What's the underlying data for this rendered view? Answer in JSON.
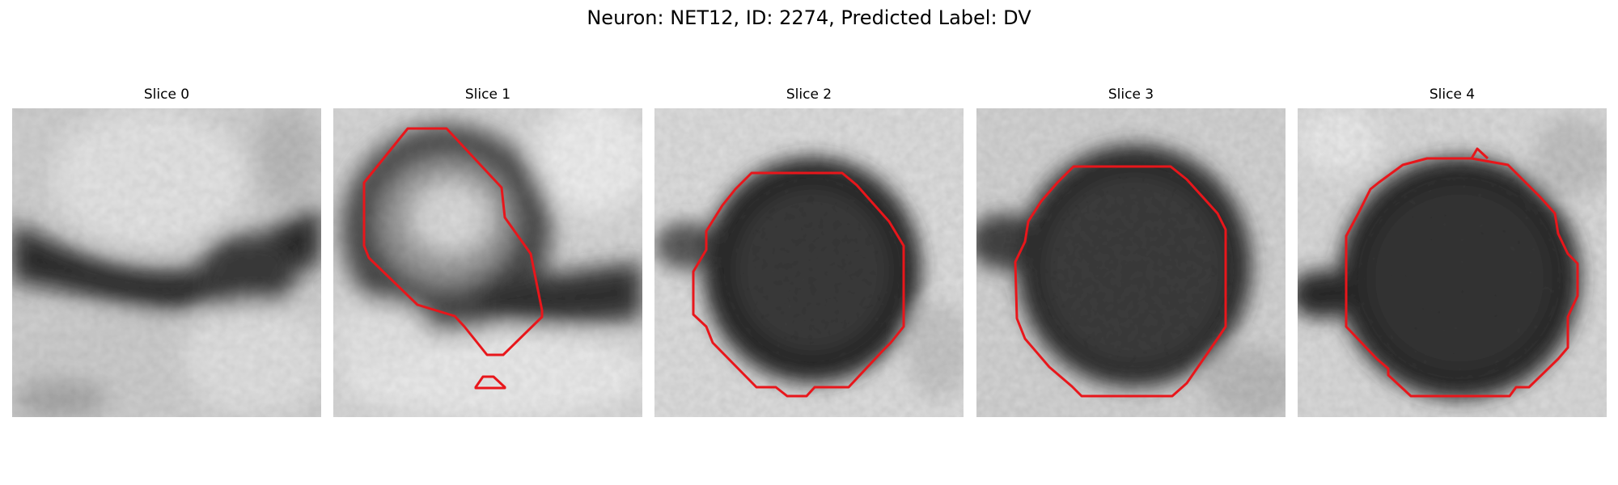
{
  "figure": {
    "title": "Neuron: NET12, ID: 2274, Predicted Label: DV"
  },
  "panels": [
    {
      "title": "Slice 0"
    },
    {
      "title": "Slice 1"
    },
    {
      "title": "Slice 2"
    },
    {
      "title": "Slice 3"
    },
    {
      "title": "Slice 4"
    }
  ],
  "colors": {
    "contour": "#e8161b",
    "background": "#ffffff"
  }
}
